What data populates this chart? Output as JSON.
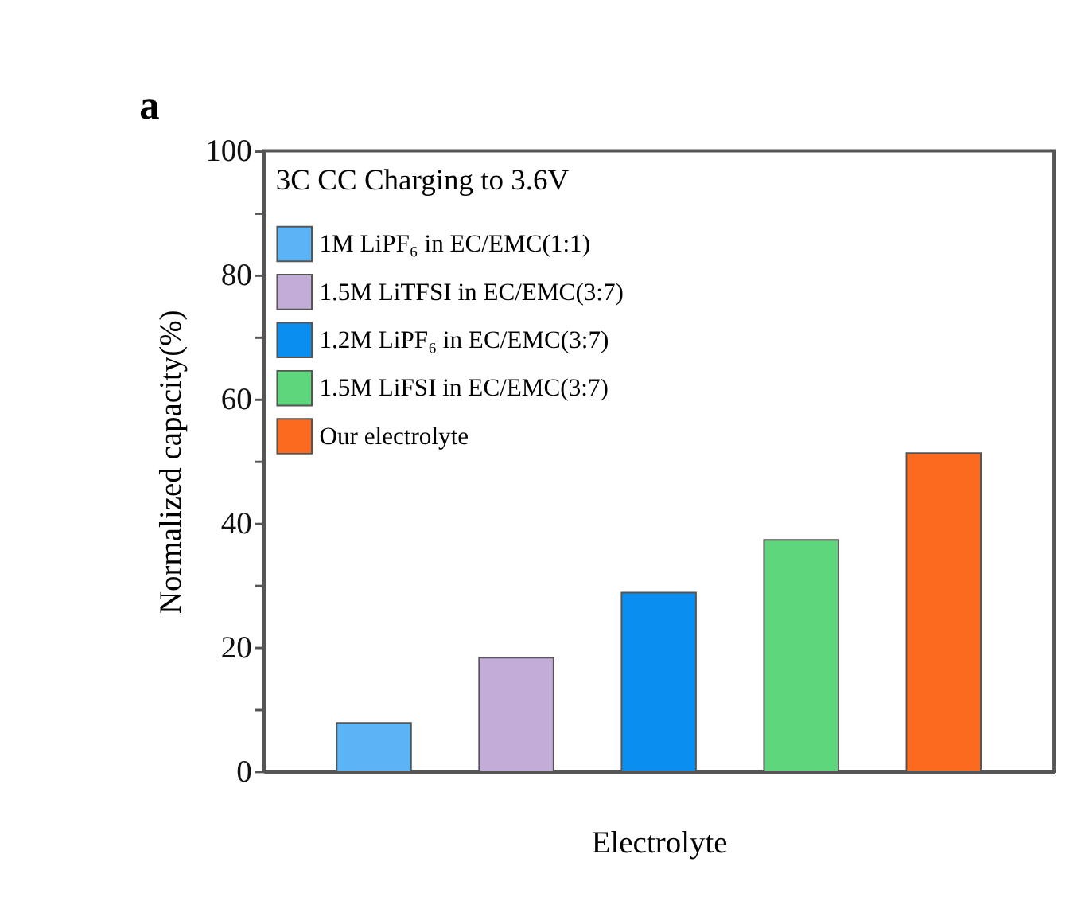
{
  "chart_data": {
    "type": "bar",
    "ylabel": "Normalized capacity(%)",
    "xlabel": "Electrolyte",
    "annotations": [
      "a",
      "3C CC Charging to 3.6V"
    ],
    "categories": [
      null,
      null,
      null,
      null,
      null
    ],
    "series": [
      {
        "name": "1M LiPF₆ in EC/EMC(1:1)",
        "color": "#5ab4f5",
        "values": [
          7.8,
          null,
          null,
          null,
          null
        ]
      },
      {
        "name": "1.5M LiTFSI in EC/EMC(3:7)",
        "color": "#c3acd8",
        "values": [
          null,
          18.3,
          null,
          null,
          null
        ]
      },
      {
        "name": "1.2M LiPF₆ in EC/EMC(3:7)",
        "color": "#0a8ff0",
        "values": [
          null,
          null,
          28.8,
          null,
          null
        ]
      },
      {
        "name": "1.5M LiFSI in EC/EMC(3:7)",
        "color": "#5ed67c",
        "values": [
          null,
          null,
          null,
          37.3,
          null
        ]
      },
      {
        "name": "Our electrolyte",
        "color": "#fb6a1e",
        "values": [
          null,
          null,
          null,
          null,
          51.3
        ]
      }
    ],
    "ylim": [
      0,
      100
    ],
    "yticks": [
      0,
      {
        "value": 10,
        "label": null
      },
      20,
      {
        "value": 30,
        "label": null
      },
      40,
      {
        "value": 50,
        "label": null
      },
      60,
      {
        "value": 70,
        "label": null
      },
      80,
      {
        "value": 90,
        "label": null
      },
      100
    ],
    "grid": false,
    "legend": "top left"
  }
}
